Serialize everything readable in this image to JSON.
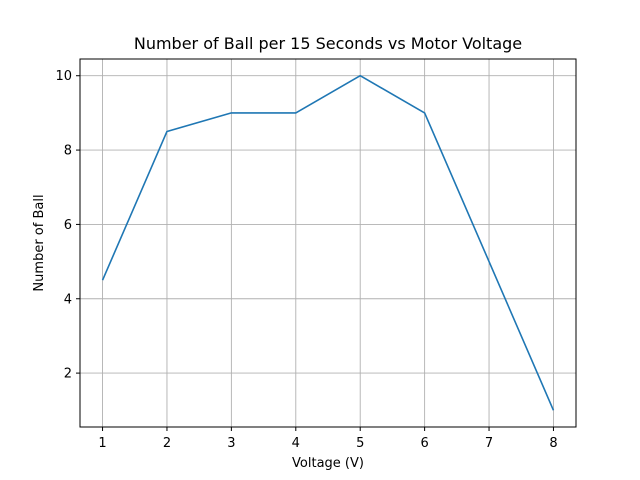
{
  "chart_data": {
    "type": "line",
    "title": "Number of Ball per 15 Seconds vs Motor Voltage",
    "xlabel": "Voltage (V)",
    "ylabel": "Number of Ball",
    "x": [
      1,
      2,
      3,
      4,
      5,
      6,
      7,
      8
    ],
    "series": [
      {
        "values": [
          4.5,
          8.5,
          9,
          9,
          10,
          9,
          5,
          1
        ],
        "color": "#1f77b4"
      }
    ],
    "xlim": [
      0.65,
      8.35
    ],
    "ylim": [
      0.55,
      10.45
    ],
    "xticks": [
      "1",
      "2",
      "3",
      "4",
      "5",
      "6",
      "7",
      "8"
    ],
    "yticks": [
      "2",
      "4",
      "6",
      "8",
      "10"
    ],
    "grid": true
  }
}
